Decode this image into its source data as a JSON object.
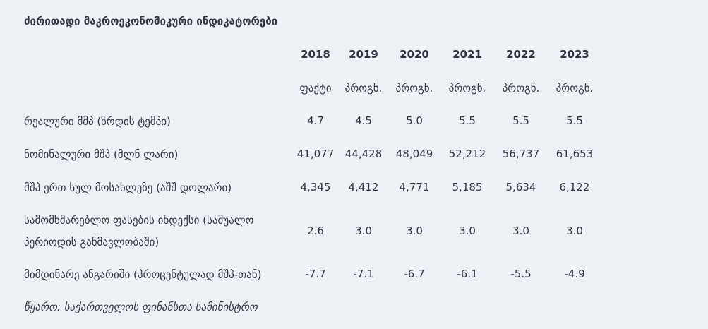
{
  "title": "ძირითადი მაკროეკონომიკური ინდიკატორები",
  "years": [
    "2018",
    "2019",
    "2020",
    "2021",
    "2022",
    "2023"
  ],
  "status": [
    "ფაქტი",
    "პროგნ.",
    "პროგნ.",
    "პროგნ.",
    "პროგნ.",
    "პროგნ."
  ],
  "rows": [
    {
      "label": "რეალური მშპ (ზრდის ტემპი)",
      "values": [
        "4.7",
        "4.5",
        "5.0",
        "5.5",
        "5.5",
        "5.5"
      ]
    },
    {
      "label": "ნომინალური მშპ (მლნ ლარი)",
      "values": [
        "41,077",
        "44,428",
        "48,049",
        "52,212",
        "56,737",
        "61,653"
      ]
    },
    {
      "label": "მშპ ერთ სულ მოსახლეზე (აშშ დოლარი)",
      "values": [
        "4,345",
        "4,412",
        "4,771",
        "5,185",
        "5,634",
        "6,122"
      ]
    },
    {
      "label": "სამომხმარებლო ფასების ინდექსი (საშუალო პერიოდის განმავლობაში)",
      "values": [
        "2.6",
        "3.0",
        "3.0",
        "3.0",
        "3.0",
        "3.0"
      ]
    },
    {
      "label": "მიმდინარე ანგარიში (პროცენტულად მშპ-თან)",
      "values": [
        "-7.7",
        "-7.1",
        "-6.7",
        "-6.1",
        "-5.5",
        "-4.9"
      ]
    }
  ],
  "source": "წყარო: საქართველოს ფინანსთა სამინისტრო"
}
